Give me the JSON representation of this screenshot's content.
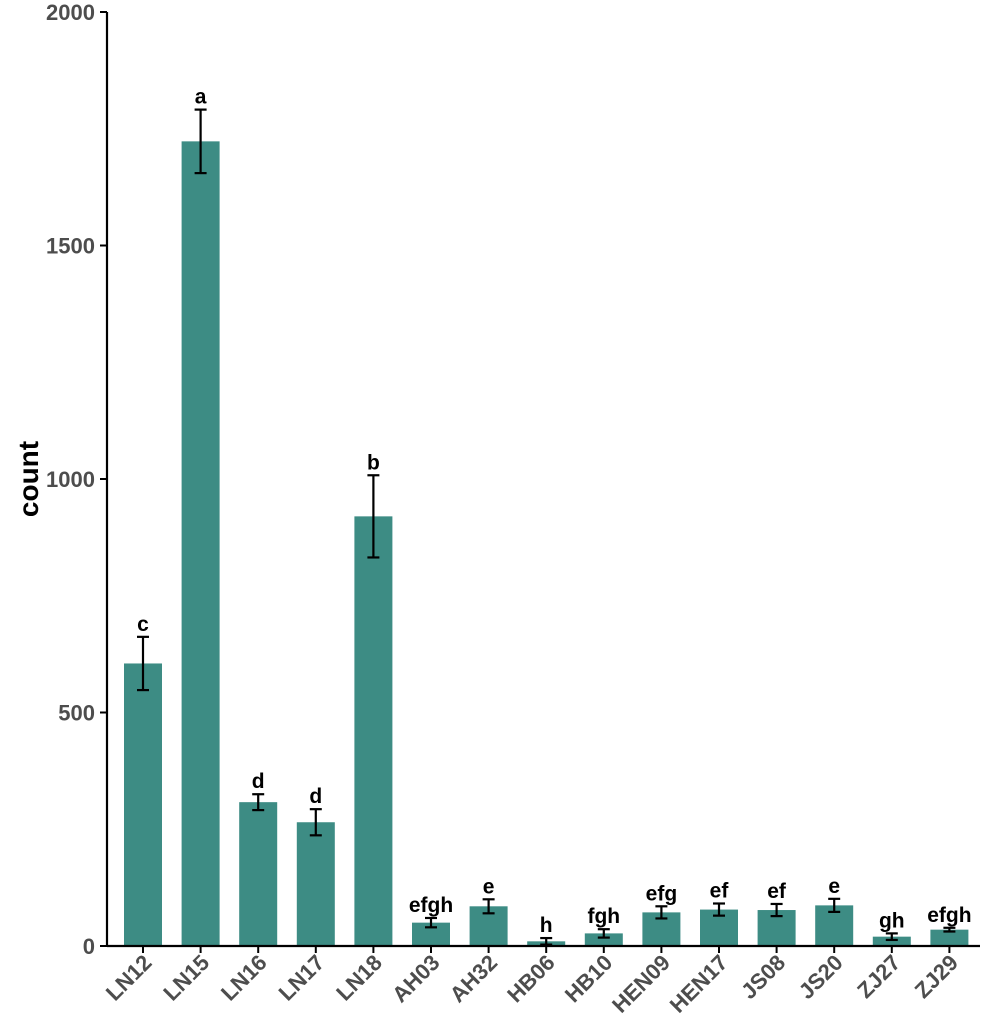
{
  "chart_data": {
    "type": "bar",
    "title": "",
    "xlabel": "",
    "ylabel": "count",
    "ylim": [
      0,
      2000
    ],
    "yticks": [
      0,
      500,
      1000,
      1500,
      2000
    ],
    "grid": false,
    "legend": "none",
    "bar_color": "#3d8c84",
    "categories": [
      "LN12",
      "LN15",
      "LN16",
      "LN17",
      "LN18",
      "AH03",
      "AH32",
      "HB06",
      "HB10",
      "HEN09",
      "HEN17",
      "JS08",
      "JS20",
      "ZJ27",
      "ZJ29"
    ],
    "values": [
      605,
      1723,
      308,
      265,
      920,
      50,
      85,
      10,
      27,
      72,
      78,
      77,
      87,
      20,
      35
    ],
    "errors": [
      57,
      68,
      17,
      28,
      88,
      10,
      15,
      7,
      9,
      13,
      13,
      13,
      14,
      7,
      4
    ],
    "significance": [
      "c",
      "a",
      "d",
      "d",
      "b",
      "efgh",
      "e",
      "h",
      "fgh",
      "efg",
      "ef",
      "ef",
      "e",
      "gh",
      "efgh"
    ]
  }
}
